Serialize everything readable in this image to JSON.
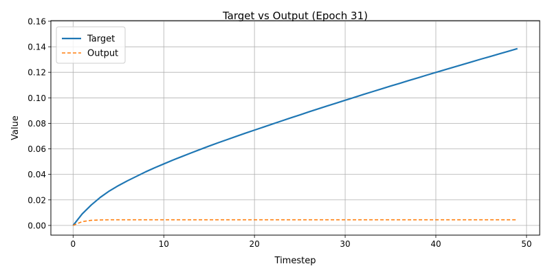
{
  "chart_data": {
    "type": "line",
    "title": "Target vs Output (Epoch 31)",
    "xlabel": "Timestep",
    "ylabel": "Value",
    "xlim": [
      -2.45,
      51.45
    ],
    "ylim": [
      -0.0076,
      0.1605
    ],
    "x_ticks": [
      0,
      10,
      20,
      30,
      40,
      50
    ],
    "y_ticks": [
      0.0,
      0.02,
      0.04,
      0.06,
      0.08,
      0.1,
      0.12,
      0.14,
      0.16
    ],
    "x_tick_labels": [
      "0",
      "10",
      "20",
      "30",
      "40",
      "50"
    ],
    "y_tick_labels": [
      "0.00",
      "0.02",
      "0.04",
      "0.06",
      "0.08",
      "0.10",
      "0.12",
      "0.14",
      "0.16"
    ],
    "grid": true,
    "legend_position": "top-left",
    "x": [
      0,
      1,
      2,
      3,
      4,
      5,
      6,
      7,
      8,
      9,
      10,
      11,
      12,
      13,
      14,
      15,
      16,
      17,
      18,
      19,
      20,
      21,
      22,
      23,
      24,
      25,
      26,
      27,
      28,
      29,
      30,
      31,
      32,
      33,
      34,
      35,
      36,
      37,
      38,
      39,
      40,
      41,
      42,
      43,
      44,
      45,
      46,
      47,
      48,
      49
    ],
    "series": [
      {
        "name": "Target",
        "color": "#1f77b4",
        "style": "solid",
        "values": [
          0.0,
          0.009,
          0.016,
          0.022,
          0.027,
          0.0312,
          0.035,
          0.0385,
          0.042,
          0.0452,
          0.0482,
          0.0512,
          0.054,
          0.0568,
          0.0595,
          0.0622,
          0.0648,
          0.0673,
          0.0698,
          0.0723,
          0.0747,
          0.0771,
          0.0795,
          0.0819,
          0.0843,
          0.0866,
          0.089,
          0.0913,
          0.0936,
          0.0958,
          0.0981,
          0.1003,
          0.1026,
          0.1048,
          0.107,
          0.1092,
          0.1113,
          0.1135,
          0.1156,
          0.1178,
          0.1199,
          0.122,
          0.1241,
          0.1262,
          0.1283,
          0.1304,
          0.1324,
          0.1345,
          0.1365,
          0.1386
        ]
      },
      {
        "name": "Output",
        "color": "#ff7f0e",
        "style": "dashed",
        "values": [
          0.0,
          0.003,
          0.004,
          0.0043,
          0.0044,
          0.0044,
          0.0044,
          0.0044,
          0.0044,
          0.0044,
          0.0044,
          0.0044,
          0.0044,
          0.0044,
          0.0044,
          0.0044,
          0.0044,
          0.0044,
          0.0044,
          0.0044,
          0.0044,
          0.0044,
          0.0044,
          0.0044,
          0.0044,
          0.0044,
          0.0044,
          0.0044,
          0.0044,
          0.0044,
          0.0044,
          0.0044,
          0.0044,
          0.0044,
          0.0044,
          0.0044,
          0.0044,
          0.0044,
          0.0044,
          0.0044,
          0.0044,
          0.0044,
          0.0044,
          0.0044,
          0.0044,
          0.0044,
          0.0044,
          0.0044,
          0.0044,
          0.0044
        ]
      }
    ]
  }
}
